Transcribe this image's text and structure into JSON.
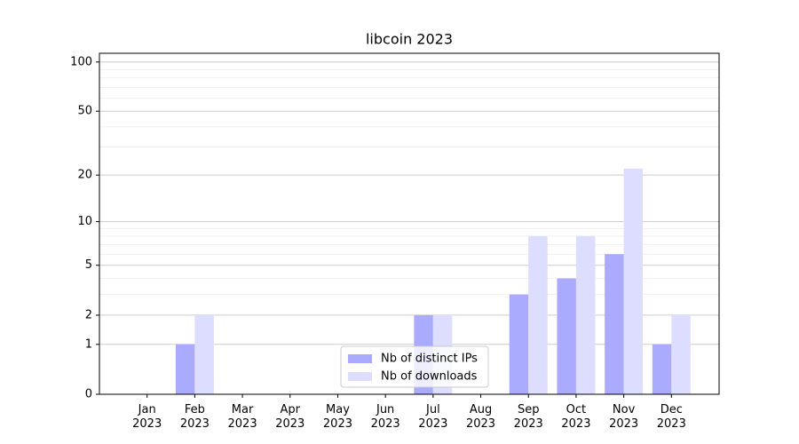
{
  "chart_data": {
    "type": "bar",
    "title": "libcoin 2023",
    "scale": "log1p",
    "categories": [
      "Jan 2023",
      "Feb 2023",
      "Mar 2023",
      "Apr 2023",
      "May 2023",
      "Jun 2023",
      "Jul 2023",
      "Aug 2023",
      "Sep 2023",
      "Oct 2023",
      "Nov 2023",
      "Dec 2023"
    ],
    "series": [
      {
        "name": "Nb of distinct IPs",
        "color": "#aaaaff",
        "values": [
          0,
          1,
          0,
          0,
          0,
          0,
          2,
          0,
          3,
          4,
          6,
          1
        ]
      },
      {
        "name": "Nb of downloads",
        "color": "#ddddff",
        "values": [
          0,
          2,
          0,
          0,
          0,
          0,
          2,
          0,
          8,
          8,
          22,
          2
        ]
      }
    ],
    "ylim": [
      0,
      113
    ],
    "yticks": [
      0,
      1,
      2,
      5,
      10,
      20,
      50,
      100
    ],
    "minor_yticks": [
      3,
      4,
      6,
      7,
      8,
      9,
      30,
      40,
      60,
      70,
      80,
      90
    ],
    "grid": true,
    "legend": "lower center"
  }
}
